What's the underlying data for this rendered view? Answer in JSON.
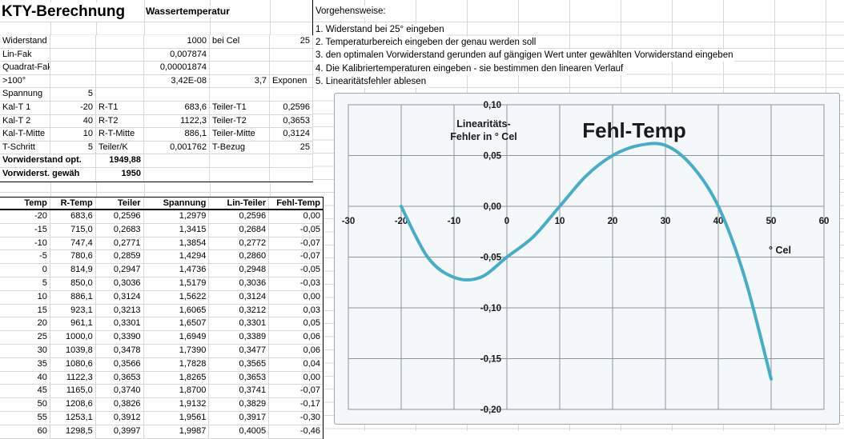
{
  "sheet": {
    "title": "KTY-Berechnung",
    "subtitle": "Wassertemperatur"
  },
  "params": {
    "rows": [
      [
        {
          "c": 0,
          "t": "Widerstand",
          "a": "l"
        },
        {
          "c": 3,
          "t": "1000",
          "a": "r"
        },
        {
          "c": 4,
          "t": "bei Cel",
          "a": "l"
        },
        {
          "c": 5,
          "t": "25",
          "a": "r"
        }
      ],
      [
        {
          "c": 0,
          "t": "Lin-Fak",
          "a": "l"
        },
        {
          "c": 3,
          "t": "0,007874",
          "a": "r"
        }
      ],
      [
        {
          "c": 0,
          "t": "Quadrat-Fak",
          "a": "l"
        },
        {
          "c": 3,
          "t": "0,00001874",
          "a": "r"
        }
      ],
      [
        {
          "c": 0,
          "t": ">100°",
          "a": "l"
        },
        {
          "c": 3,
          "t": "3,42E-08",
          "a": "r"
        },
        {
          "c": 4,
          "t": "3,7",
          "a": "r"
        },
        {
          "c": 5,
          "t": "Exponen",
          "a": "l"
        }
      ],
      [
        {
          "c": 0,
          "t": "Spannung",
          "a": "l"
        },
        {
          "c": 1,
          "t": "5",
          "a": "r"
        }
      ],
      [
        {
          "c": 0,
          "t": "Kal-T 1",
          "a": "l"
        },
        {
          "c": 1,
          "t": "-20",
          "a": "r"
        },
        {
          "c": 2,
          "t": "R-T1",
          "a": "l"
        },
        {
          "c": 3,
          "t": "683,6",
          "a": "r"
        },
        {
          "c": 4,
          "t": "Teiler-T1",
          "a": "l"
        },
        {
          "c": 5,
          "t": "0,2596",
          "a": "r"
        }
      ],
      [
        {
          "c": 0,
          "t": "Kal-T 2",
          "a": "l"
        },
        {
          "c": 1,
          "t": "40",
          "a": "r"
        },
        {
          "c": 2,
          "t": "R-T2",
          "a": "l"
        },
        {
          "c": 3,
          "t": "1122,3",
          "a": "r"
        },
        {
          "c": 4,
          "t": "Teiler-T2",
          "a": "l"
        },
        {
          "c": 5,
          "t": "0,3653",
          "a": "r"
        }
      ],
      [
        {
          "c": 0,
          "t": "Kal-T-Mitte",
          "a": "l"
        },
        {
          "c": 1,
          "t": "10",
          "a": "r"
        },
        {
          "c": 2,
          "t": "R-T-Mitte",
          "a": "l"
        },
        {
          "c": 3,
          "t": "886,1",
          "a": "r"
        },
        {
          "c": 4,
          "t": "Teiler-Mitte",
          "a": "l"
        },
        {
          "c": 5,
          "t": "0,3124",
          "a": "r"
        }
      ],
      [
        {
          "c": 0,
          "t": "T-Schritt",
          "a": "l"
        },
        {
          "c": 1,
          "t": "5",
          "a": "r"
        },
        {
          "c": 2,
          "t": "Teiler/K",
          "a": "l"
        },
        {
          "c": 3,
          "t": "0,001762",
          "a": "r"
        },
        {
          "c": 4,
          "t": "T-Bezug",
          "a": "l"
        },
        {
          "c": 5,
          "t": "25",
          "a": "r"
        }
      ],
      [
        {
          "c": 0,
          "t": "Vorwiderstand opt.",
          "a": "l",
          "b": 1,
          "w": 2
        },
        {
          "c": 2,
          "t": "1949,88",
          "a": "r",
          "b": 1
        }
      ],
      [
        {
          "c": 0,
          "t": "Vorwiderst. gewäh",
          "a": "l",
          "b": 1,
          "w": 2
        },
        {
          "c": 2,
          "t": "1950",
          "a": "r",
          "b": 1
        }
      ]
    ]
  },
  "instructions": {
    "heading": "Vorgehensweise:",
    "steps": [
      "1. Widerstand bei 25° eingeben",
      "2. Temperaturbereich eingeben der genau werden soll",
      "3. den optimalen Vorwiderstand gerunden auf gängigen Wert unter gewählten Vorwiderstand eingeben",
      "4. Die Kalibriertemperaturen eingeben - sie bestimmen den linearen Verlauf",
      "5. Linearitätsfehler ablesen"
    ]
  },
  "table": {
    "headers": [
      "Temp",
      "R-Temp",
      "Teiler",
      "Spannung",
      "Lin-Teiler",
      "Fehl-Temp"
    ],
    "rows": [
      [
        "-20",
        "683,6",
        "0,2596",
        "1,2979",
        "0,2596",
        "0,00"
      ],
      [
        "-15",
        "715,0",
        "0,2683",
        "1,3415",
        "0,2684",
        "-0,05"
      ],
      [
        "-10",
        "747,4",
        "0,2771",
        "1,3854",
        "0,2772",
        "-0,07"
      ],
      [
        "-5",
        "780,6",
        "0,2859",
        "1,4294",
        "0,2860",
        "-0,07"
      ],
      [
        "0",
        "814,9",
        "0,2947",
        "1,4736",
        "0,2948",
        "-0,05"
      ],
      [
        "5",
        "850,0",
        "0,3036",
        "1,5179",
        "0,3036",
        "-0,03"
      ],
      [
        "10",
        "886,1",
        "0,3124",
        "1,5622",
        "0,3124",
        "0,00"
      ],
      [
        "15",
        "923,1",
        "0,3213",
        "1,6065",
        "0,3212",
        "0,03"
      ],
      [
        "20",
        "961,1",
        "0,3301",
        "1,6507",
        "0,3301",
        "0,05"
      ],
      [
        "25",
        "1000,0",
        "0,3390",
        "1,6949",
        "0,3389",
        "0,06"
      ],
      [
        "30",
        "1039,8",
        "0,3478",
        "1,7390",
        "0,3477",
        "0,06"
      ],
      [
        "35",
        "1080,6",
        "0,3566",
        "1,7828",
        "0,3565",
        "0,04"
      ],
      [
        "40",
        "1122,3",
        "0,3653",
        "1,8265",
        "0,3653",
        "0,00"
      ],
      [
        "45",
        "1165,0",
        "0,3740",
        "1,8700",
        "0,3741",
        "-0,07"
      ],
      [
        "50",
        "1208,6",
        "0,3826",
        "1,9132",
        "0,3829",
        "-0,17"
      ],
      [
        "55",
        "1253,1",
        "0,3912",
        "1,9561",
        "0,3917",
        "-0,30"
      ],
      [
        "60",
        "1298,5",
        "0,3997",
        "1,9987",
        "0,4005",
        "-0,46"
      ]
    ]
  },
  "chart_data": {
    "type": "line",
    "title": "Fehl-Temp",
    "y_axis_title_lines": [
      "Linearitäts-",
      "Fehler in ° Cel"
    ],
    "x_axis_title": "° Cel",
    "x": [
      -20,
      -15,
      -10,
      -5,
      0,
      5,
      10,
      15,
      20,
      25,
      30,
      35,
      40,
      45,
      50
    ],
    "y": [
      0.0,
      -0.05,
      -0.07,
      -0.07,
      -0.05,
      -0.03,
      0.0,
      0.03,
      0.05,
      0.06,
      0.06,
      0.04,
      0.0,
      -0.07,
      -0.17
    ],
    "xlim": [
      -30,
      60
    ],
    "ylim": [
      -0.2,
      0.1
    ],
    "x_tick_step": 10,
    "y_tick_step": 0.05,
    "x_tick_labels": [
      "-30",
      "-20",
      "-10",
      "0",
      "10",
      "20",
      "30",
      "40",
      "50",
      "60"
    ],
    "y_tick_labels": [
      "0,10",
      "0,05",
      "0,00",
      "-0,05",
      "-0,10",
      "-0,15",
      "-0,20"
    ],
    "grid": true,
    "line_color": "#4BACC6",
    "grid_color": "#8e959c"
  }
}
